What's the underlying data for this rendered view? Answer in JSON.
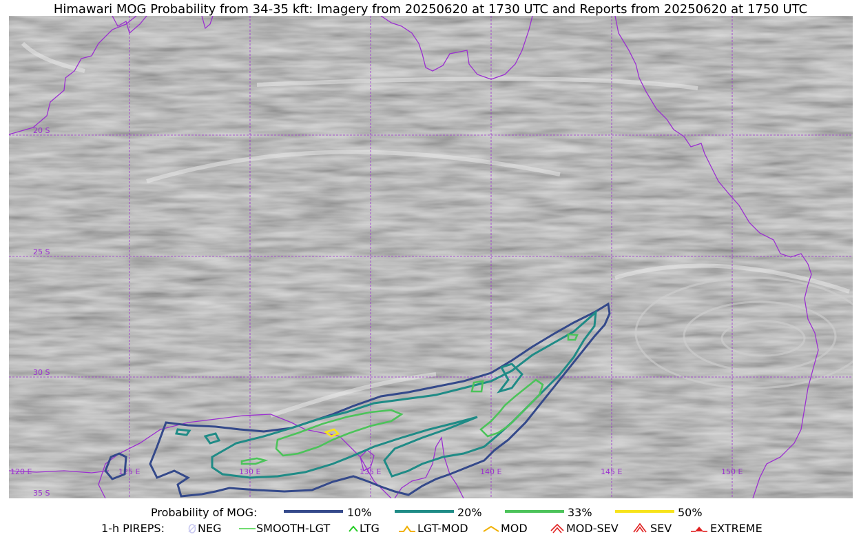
{
  "title": "Himawari MOG Probability from 34-35 kft: Imagery from 20250620 at 1730 UTC and Reports from 20250620 at 1750 UTC",
  "map": {
    "lat_labels": [
      "20 S",
      "25 S",
      "30 S",
      "35 S"
    ],
    "lon_labels": [
      "120 E",
      "125 E",
      "130 E",
      "135 E",
      "140 E",
      "145 E",
      "150 E"
    ],
    "coastline_color": "#9b30d0",
    "grid_color": "#9b30d0"
  },
  "legend_prob": {
    "label": "Probability of MOG:",
    "items": [
      {
        "label": "10%",
        "color": "#34498a"
      },
      {
        "label": "20%",
        "color": "#1f8b86"
      },
      {
        "label": "33%",
        "color": "#4cc35a"
      },
      {
        "label": "50%",
        "color": "#f7e31b"
      }
    ]
  },
  "legend_pireps": {
    "label": "1-h PIREPS:",
    "items": [
      {
        "label": "NEG",
        "color": "#c8c8f0",
        "icon": "neg-icon"
      },
      {
        "label": "SMOOTH-LGT",
        "color": "#44d044",
        "icon": "smooth-lgt-icon"
      },
      {
        "label": "LTG",
        "color": "#22cc22",
        "icon": "ltg-icon"
      },
      {
        "label": "LGT-MOD",
        "color": "#f0b000",
        "icon": "lgt-mod-icon"
      },
      {
        "label": "MOD",
        "color": "#f0b000",
        "icon": "mod-icon"
      },
      {
        "label": "MOD-SEV",
        "color": "#e02020",
        "icon": "mod-sev-icon"
      },
      {
        "label": "SEV",
        "color": "#e02020",
        "icon": "sev-icon"
      },
      {
        "label": "EXTREME",
        "color": "#e02020",
        "icon": "extreme-icon"
      }
    ]
  }
}
